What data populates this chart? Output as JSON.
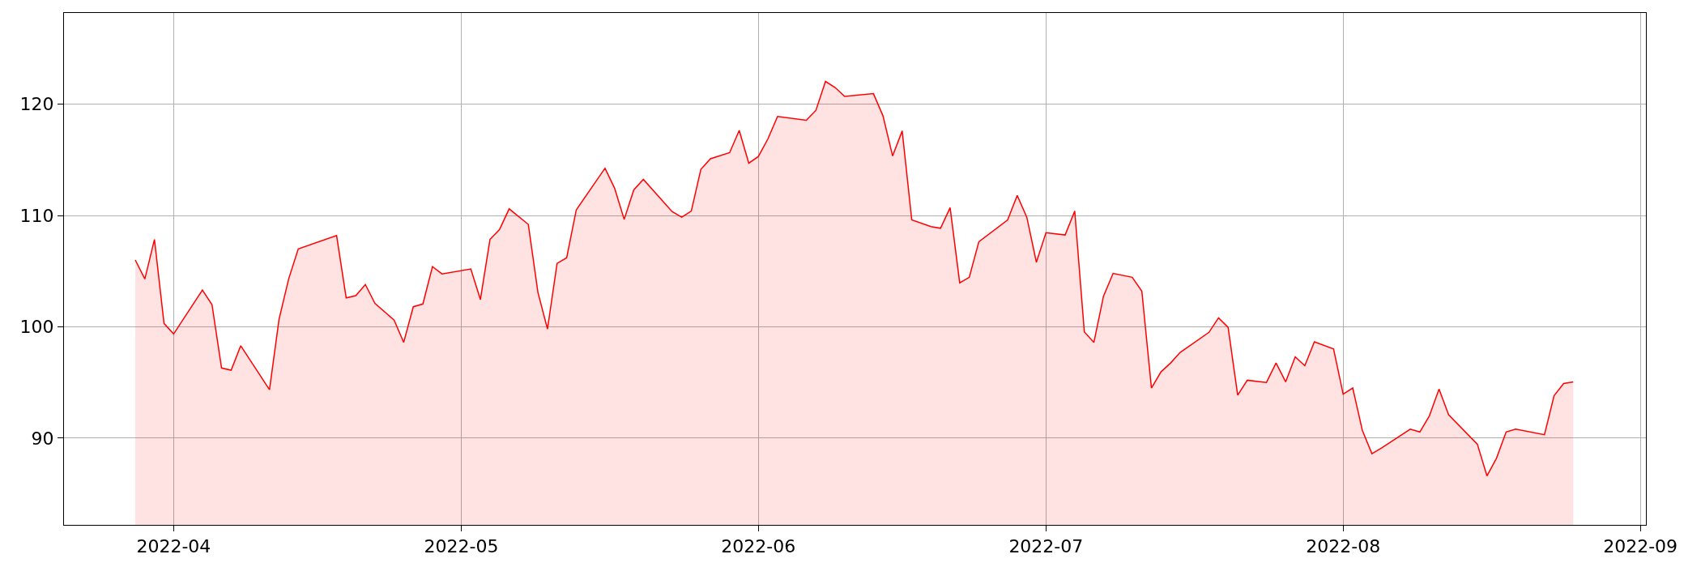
{
  "chart_data": {
    "type": "area",
    "x": [
      "2022-03-28",
      "2022-03-29",
      "2022-03-30",
      "2022-03-31",
      "2022-04-01",
      "2022-04-04",
      "2022-04-05",
      "2022-04-06",
      "2022-04-07",
      "2022-04-08",
      "2022-04-11",
      "2022-04-12",
      "2022-04-13",
      "2022-04-14",
      "2022-04-18",
      "2022-04-19",
      "2022-04-20",
      "2022-04-21",
      "2022-04-22",
      "2022-04-24",
      "2022-04-25",
      "2022-04-26",
      "2022-04-27",
      "2022-04-28",
      "2022-04-29",
      "2022-05-02",
      "2022-05-03",
      "2022-05-04",
      "2022-05-05",
      "2022-05-06",
      "2022-05-08",
      "2022-05-09",
      "2022-05-10",
      "2022-05-11",
      "2022-05-12",
      "2022-05-13",
      "2022-05-16",
      "2022-05-17",
      "2022-05-18",
      "2022-05-19",
      "2022-05-20",
      "2022-05-23",
      "2022-05-24",
      "2022-05-25",
      "2022-05-26",
      "2022-05-27",
      "2022-05-29",
      "2022-05-30",
      "2022-05-31",
      "2022-06-01",
      "2022-06-02",
      "2022-06-03",
      "2022-06-06",
      "2022-06-07",
      "2022-06-08",
      "2022-06-09",
      "2022-06-10",
      "2022-06-13",
      "2022-06-14",
      "2022-06-15",
      "2022-06-16",
      "2022-06-17",
      "2022-06-19",
      "2022-06-20",
      "2022-06-21",
      "2022-06-22",
      "2022-06-23",
      "2022-06-24",
      "2022-06-27",
      "2022-06-28",
      "2022-06-29",
      "2022-06-30",
      "2022-07-01",
      "2022-07-03",
      "2022-07-04",
      "2022-07-05",
      "2022-07-06",
      "2022-07-07",
      "2022-07-08",
      "2022-07-10",
      "2022-07-11",
      "2022-07-12",
      "2022-07-13",
      "2022-07-14",
      "2022-07-15",
      "2022-07-18",
      "2022-07-19",
      "2022-07-20",
      "2022-07-21",
      "2022-07-22",
      "2022-07-24",
      "2022-07-25",
      "2022-07-26",
      "2022-07-27",
      "2022-07-28",
      "2022-07-29",
      "2022-07-31",
      "2022-08-01",
      "2022-08-02",
      "2022-08-03",
      "2022-08-04",
      "2022-08-05",
      "2022-08-08",
      "2022-08-09",
      "2022-08-10",
      "2022-08-11",
      "2022-08-12",
      "2022-08-15",
      "2022-08-16",
      "2022-08-17",
      "2022-08-18",
      "2022-08-19",
      "2022-08-22",
      "2022-08-23",
      "2022-08-24",
      "2022-08-25"
    ],
    "series": [
      {
        "color": "#ff0000",
        "values": [
          106.0,
          104.3,
          107.85,
          100.3,
          99.35,
          103.3,
          102.0,
          96.3,
          96.1,
          98.3,
          94.35,
          100.7,
          104.3,
          107.0,
          108.2,
          102.6,
          102.8,
          103.8,
          102.1,
          100.6,
          98.6,
          101.8,
          102.05,
          105.4,
          104.75,
          105.2,
          102.45,
          107.85,
          108.75,
          110.6,
          109.2,
          103.1,
          99.8,
          105.7,
          106.2,
          110.5,
          114.25,
          112.45,
          109.65,
          112.3,
          113.25,
          110.35,
          109.85,
          110.4,
          114.15,
          115.1,
          115.65,
          117.65,
          114.7,
          115.3,
          116.9,
          118.9,
          118.55,
          119.45,
          122.05,
          121.5,
          120.7,
          120.95,
          118.95,
          115.35,
          117.6,
          109.6,
          109.0,
          108.85,
          110.7,
          103.95,
          104.45,
          107.65,
          109.6,
          111.8,
          109.85,
          105.8,
          108.45,
          108.25,
          110.4,
          99.55,
          98.6,
          102.75,
          104.8,
          104.45,
          103.2,
          94.5,
          95.95,
          96.75,
          97.7,
          99.5,
          100.8,
          99.95,
          93.85,
          95.2,
          95.0,
          96.75,
          95.05,
          97.3,
          96.5,
          98.65,
          98.0,
          93.95,
          94.5,
          90.7,
          88.6,
          89.1,
          90.8,
          90.55,
          92.0,
          94.4,
          92.1,
          89.45,
          86.6,
          88.2,
          90.55,
          90.8,
          90.3,
          93.8,
          94.9,
          95.05
        ]
      }
    ],
    "xlim": [
      "2022-03-20T13:30",
      "2022-09-01T14:00"
    ],
    "xticks": [
      {
        "value": "2022-04-01",
        "label": "2022-04"
      },
      {
        "value": "2022-05-01",
        "label": "2022-05"
      },
      {
        "value": "2022-06-01",
        "label": "2022-06"
      },
      {
        "value": "2022-07-01",
        "label": "2022-07"
      },
      {
        "value": "2022-08-01",
        "label": "2022-08"
      },
      {
        "value": "2022-09-01",
        "label": "2022-09"
      }
    ],
    "ylim": [
      82.2,
      128.2
    ],
    "yticks": [
      90,
      100,
      110,
      120
    ],
    "grid": true,
    "line_style": "solid"
  }
}
